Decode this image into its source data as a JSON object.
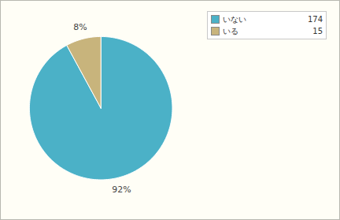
{
  "chart_data": {
    "type": "pie",
    "categories": [
      "いない",
      "いる"
    ],
    "values": [
      174,
      15
    ],
    "percentages": [
      92,
      8
    ],
    "value_labels": [
      "92%",
      "8%"
    ],
    "colors": [
      "#4bb1c7",
      "#c8b47c"
    ],
    "data_labels": true,
    "legend": "top-right"
  }
}
